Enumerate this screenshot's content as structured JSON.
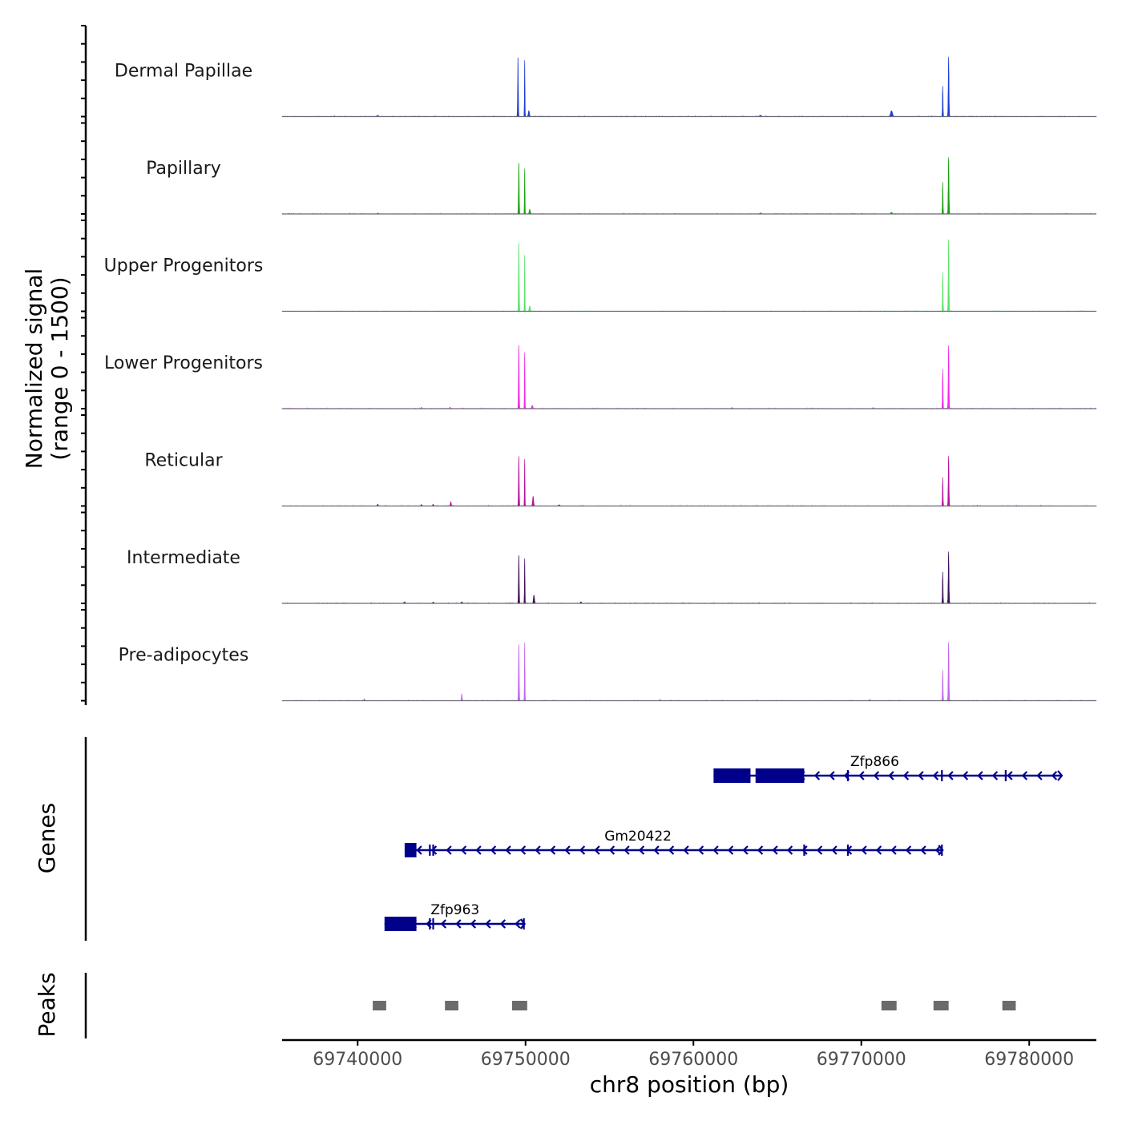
{
  "chart_data": {
    "type": "genome-browser-coverage",
    "region": {
      "chromosome": "chr8",
      "start": 69735500,
      "end": 69784000
    },
    "coverage": {
      "ylabel_line1": "Normalized signal",
      "ylabel_line2": "(range 0 - 1500)",
      "ylim": [
        0,
        1500
      ],
      "tracks": [
        {
          "name": "Dermal Papillae",
          "color": "#1f3fd6",
          "peaks": [
            [
              69749550,
              1230,
              90
            ],
            [
              69749950,
              1180,
              70
            ],
            [
              69750200,
              120,
              150
            ],
            [
              69771800,
              120,
              250
            ],
            [
              69774850,
              640,
              80
            ],
            [
              69775200,
              1250,
              100
            ],
            [
              69741200,
              25,
              150
            ],
            [
              69764000,
              25,
              200
            ]
          ]
        },
        {
          "name": "Papillary",
          "color": "#18a20e",
          "peaks": [
            [
              69749600,
              1060,
              90
            ],
            [
              69749950,
              950,
              70
            ],
            [
              69750250,
              90,
              150
            ],
            [
              69774850,
              660,
              80
            ],
            [
              69775200,
              1180,
              100
            ],
            [
              69741200,
              20,
              150
            ],
            [
              69764000,
              20,
              200
            ],
            [
              69771800,
              30,
              200
            ]
          ]
        },
        {
          "name": "Upper Progenitors",
          "color": "#5be36a",
          "peaks": [
            [
              69749600,
              1420,
              90
            ],
            [
              69749950,
              1180,
              70
            ],
            [
              69750250,
              110,
              150
            ],
            [
              69774850,
              820,
              80
            ],
            [
              69775200,
              1500,
              100
            ]
          ]
        },
        {
          "name": "Lower Progenitors",
          "color": "#f227e8",
          "peaks": [
            [
              69749600,
              1320,
              90
            ],
            [
              69749950,
              1180,
              70
            ],
            [
              69750400,
              70,
              150
            ],
            [
              69774850,
              830,
              80
            ],
            [
              69775200,
              1320,
              100
            ],
            [
              69743800,
              25,
              120
            ],
            [
              69745500,
              30,
              120
            ],
            [
              69762300,
              20,
              150
            ],
            [
              69770700,
              20,
              150
            ]
          ]
        },
        {
          "name": "Reticular",
          "color": "#b7119d",
          "peaks": [
            [
              69749600,
              1030,
              90
            ],
            [
              69749950,
              980,
              70
            ],
            [
              69750450,
              200,
              140
            ],
            [
              69774850,
              600,
              80
            ],
            [
              69775200,
              1040,
              100
            ],
            [
              69741200,
              40,
              120
            ],
            [
              69743800,
              30,
              150
            ],
            [
              69744500,
              35,
              150
            ],
            [
              69745550,
              90,
              120
            ],
            [
              69752000,
              25,
              150
            ]
          ]
        },
        {
          "name": "Intermediate",
          "color": "#3b0f59",
          "peaks": [
            [
              69749600,
              1000,
              90
            ],
            [
              69749950,
              940,
              70
            ],
            [
              69750500,
              170,
              140
            ],
            [
              69774850,
              660,
              80
            ],
            [
              69775200,
              1080,
              100
            ],
            [
              69742800,
              25,
              150
            ],
            [
              69744500,
              25,
              150
            ],
            [
              69746200,
              30,
              150
            ],
            [
              69753300,
              30,
              150
            ]
          ]
        },
        {
          "name": "Pre-adipocytes",
          "color": "#c064f2",
          "peaks": [
            [
              69749600,
              1170,
              90
            ],
            [
              69749950,
              1220,
              70
            ],
            [
              69774850,
              650,
              80
            ],
            [
              69775200,
              1220,
              100
            ],
            [
              69740400,
              40,
              120
            ],
            [
              69746200,
              140,
              100
            ],
            [
              69758000,
              25,
              150
            ],
            [
              69770500,
              25,
              150
            ]
          ]
        }
      ]
    },
    "genes": {
      "label": "Genes",
      "color": "#00008b",
      "items": [
        {
          "name": "Zfp866",
          "strand": "-",
          "start": 69761200,
          "end": 69781900,
          "row": 0,
          "exons": [
            [
              69761200,
              69763400
            ],
            [
              69763700,
              69766600
            ]
          ],
          "marks": [
            69769200,
            69774800,
            69778600
          ]
        },
        {
          "name": "Gm20422",
          "strand": "-",
          "start": 69742800,
          "end": 69774800,
          "row": 1,
          "exons": [
            [
              69742800,
              69743500
            ]
          ],
          "marks": [
            69744300,
            69744500,
            69766600,
            69769200,
            69774800
          ]
        },
        {
          "name": "Zfp963",
          "strand": "-",
          "start": 69741600,
          "end": 69749900,
          "row": 2,
          "exons": [
            [
              69741600,
              69743500
            ]
          ],
          "marks": [
            69744300,
            69744500,
            69749900
          ]
        }
      ]
    },
    "peaks": {
      "label": "Peaks",
      "color": "#6b6b6b",
      "regions": [
        [
          69740900,
          69741700
        ],
        [
          69745200,
          69746000
        ],
        [
          69749200,
          69750100
        ],
        [
          69771200,
          69772100
        ],
        [
          69774300,
          69775200
        ],
        [
          69778400,
          69779200
        ]
      ]
    },
    "xaxis": {
      "title": "chr8 position (bp)",
      "ticks": [
        69740000,
        69750000,
        69760000,
        69770000,
        69780000
      ],
      "tick_labels": [
        "69740000",
        "69750000",
        "69760000",
        "69770000",
        "69780000"
      ]
    }
  }
}
